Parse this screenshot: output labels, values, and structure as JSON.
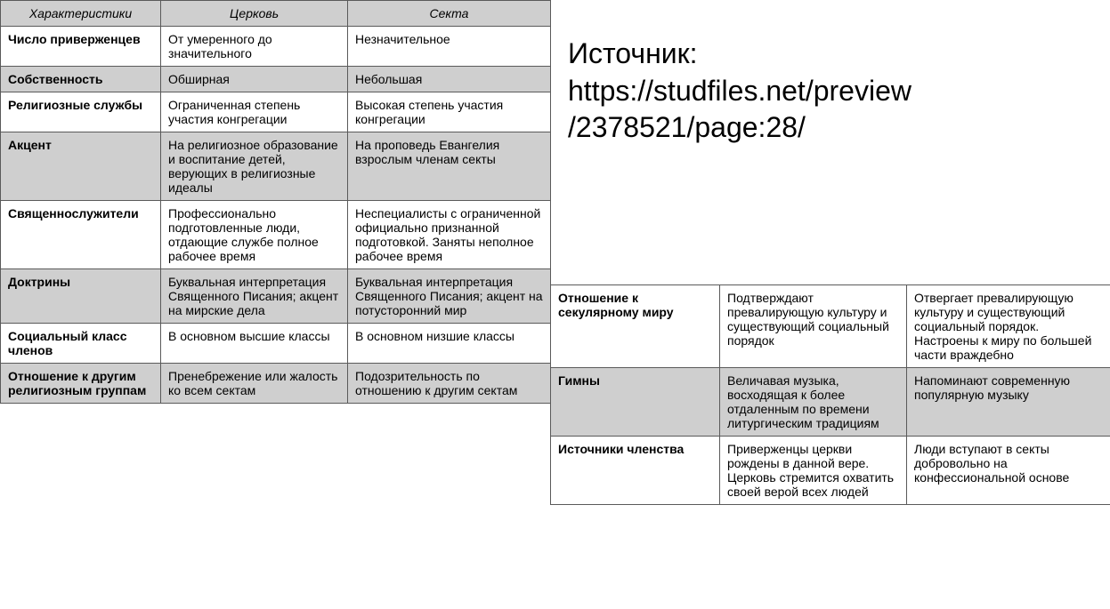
{
  "source": {
    "label": "Источник:",
    "url_line1": "https://studfiles.net/preview",
    "url_line2": "/2378521/page:28/"
  },
  "left_table": {
    "headers": [
      "Характеристики",
      "Церковь",
      "Секта"
    ],
    "rows": [
      {
        "shaded": false,
        "cells": [
          "Число приверженцев",
          "От умеренного до значительного",
          "Незначительное"
        ]
      },
      {
        "shaded": true,
        "cells": [
          "Собственность",
          "Обширная",
          "Небольшая"
        ]
      },
      {
        "shaded": false,
        "cells": [
          "Религиозные службы",
          "Ограниченная степень участия конгрегации",
          "Высокая степень участия конгрегации"
        ]
      },
      {
        "shaded": true,
        "cells": [
          "Акцент",
          "На религиозное образование и воспитание детей, верующих в религиозные идеалы",
          "На проповедь Евангелия взрослым членам секты"
        ]
      },
      {
        "shaded": false,
        "cells": [
          "Священнослужители",
          "Профессионально подготовленные люди, отдающие службе полное рабочее время",
          "Неспециалисты с ограниченной официально признанной подготовкой. Заняты неполное рабочее время"
        ]
      },
      {
        "shaded": true,
        "cells": [
          "Доктрины",
          "Буквальная интерпретация Священного Писания; акцент на мирские дела",
          "Буквальная интерпретация Священного Писания; акцент на потусторонний мир"
        ]
      },
      {
        "shaded": false,
        "cells": [
          "Социальный класс членов",
          "В основном высшие классы",
          "В основном низшие классы"
        ]
      },
      {
        "shaded": true,
        "cells": [
          "Отношение к другим религиозным группам",
          "Пренебрежение или жалость ко всем сектам",
          "Подозрительность по отношению к другим сектам"
        ]
      }
    ]
  },
  "right_table": {
    "rows": [
      {
        "shaded": false,
        "cells": [
          "Отношение к секулярному миру",
          "Подтверждают превалирующую культуру и существующий социальный порядок",
          "Отвергает превалирующую культуру и существующий социальный порядок. Настроены к миру по большей части враждебно"
        ]
      },
      {
        "shaded": true,
        "cells": [
          "Гимны",
          "Величавая музыка, восходящая к более отдаленным по времени литургическим традициям",
          "Напоминают современную популярную музыку"
        ]
      },
      {
        "shaded": false,
        "cells": [
          "Источники членства",
          "Приверженцы церкви рождены в данной вере. Церковь стремится охватить своей верой всех людей",
          "Люди вступают в секты добровольно на конфессиональной основе"
        ]
      }
    ]
  },
  "colors": {
    "border": "#5a5a5a",
    "shaded_bg": "#cfcfcf",
    "text": "#000000",
    "background": "#ffffff"
  }
}
